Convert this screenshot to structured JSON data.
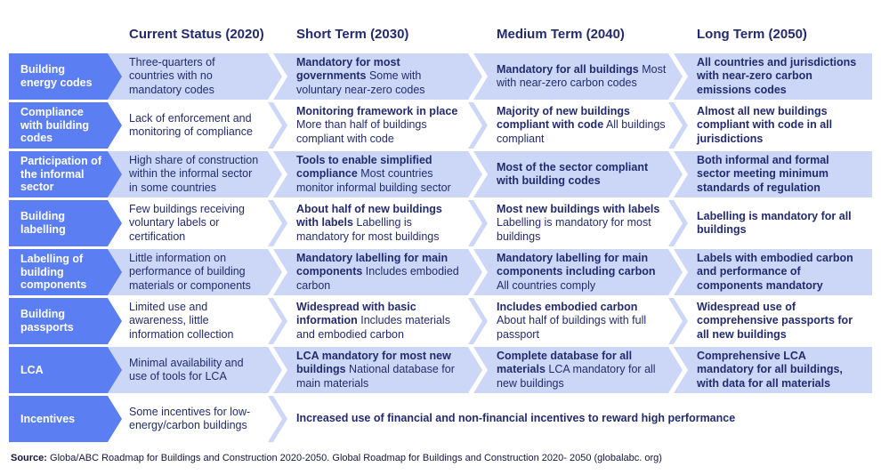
{
  "colors": {
    "arrow_blue": "#5b7ff2",
    "band_light": "#ccd7f7",
    "text_navy": "#232b6e"
  },
  "header": {
    "columns": [
      "Current Status (2020)",
      "Short Term (2030)",
      "Medium Term (2040)",
      "Long Term (2050)"
    ]
  },
  "rows": [
    {
      "label": "Building energy codes",
      "cells": [
        {
          "strong": "",
          "rest": "Three-quarters of countries with no mandatory codes"
        },
        {
          "strong": "Mandatory for most governments",
          "rest": "Some with voluntary near-zero codes"
        },
        {
          "strong": "Mandatory for all buildings",
          "rest": "Most with near-zero carbon codes"
        },
        {
          "strong": "All countries and jurisdictions with near-zero carbon emissions codes",
          "rest": ""
        }
      ]
    },
    {
      "label": "Compliance with building codes",
      "cells": [
        {
          "strong": "",
          "rest": "Lack of enforcement and monitoring of compliance"
        },
        {
          "strong": "Monitoring framework in place",
          "rest": "More than half of buildings compliant with code"
        },
        {
          "strong": "Majority of new buildings compliant with code",
          "rest": "All buildings compliant"
        },
        {
          "strong": "Almost all new buildings compliant with code in all jurisdictions",
          "rest": ""
        }
      ]
    },
    {
      "label": "Participation of the informal sector",
      "cells": [
        {
          "strong": "",
          "rest": "High share of construction within the informal sector in some countries"
        },
        {
          "strong": "Tools to enable simplified compliance",
          "rest": "Most countries monitor informal building sector"
        },
        {
          "strong": "Most of the sector compliant with building codes",
          "rest": ""
        },
        {
          "strong": "Both informal and formal sector meeting minimum standards of regulation",
          "rest": ""
        }
      ]
    },
    {
      "label": "Building labelling",
      "cells": [
        {
          "strong": "",
          "rest": "Few buildings receiving voluntary labels or certification"
        },
        {
          "strong": "About half of new buildings with labels",
          "rest": "Labelling is mandatory for most buildings"
        },
        {
          "strong": "Most new buildings with labels",
          "rest": "Labelling is mandatory for most buildings"
        },
        {
          "strong": "Labelling is mandatory for all buildings",
          "rest": ""
        }
      ]
    },
    {
      "label": "Labelling of building components",
      "cells": [
        {
          "strong": "",
          "rest": "Little information on performance of building materials or components"
        },
        {
          "strong": "Mandatory labelling for main components",
          "rest": "Includes embodied carbon"
        },
        {
          "strong": "Mandatory labelling for main components including carbon",
          "rest": "All countries comply"
        },
        {
          "strong": "Labels with embodied carbon and performance of components mandatory",
          "rest": ""
        }
      ]
    },
    {
      "label": "Building passports",
      "cells": [
        {
          "strong": "",
          "rest": "Limited use and awareness, little information collection"
        },
        {
          "strong": "Widespread with basic information",
          "rest": "Includes materials and embodied carbon"
        },
        {
          "strong": "Includes embodied carbon",
          "rest": "About half of buildings with full passport"
        },
        {
          "strong": "Widespread use of comprehensive passports for all new buildings",
          "rest": ""
        }
      ]
    },
    {
      "label": "LCA",
      "cells": [
        {
          "strong": "",
          "rest": "Minimal availability and use of tools for LCA"
        },
        {
          "strong": "LCA mandatory for most new buildings",
          "rest": "National database for main materials"
        },
        {
          "strong": "Complete database for all materials",
          "rest": "LCA mandatory for all new buildings"
        },
        {
          "strong": "Comprehensive LCA mandatory for all buildings, with data for all materials",
          "rest": ""
        }
      ]
    },
    {
      "label": "Incentives",
      "cells": [
        {
          "strong": "",
          "rest": "Some incentives for low-energy/carbon buildings"
        },
        {
          "strong": "Increased use of financial and non-financial incentives to reward high performance",
          "rest": ""
        }
      ]
    }
  ],
  "source": {
    "label": "Source:",
    "text": "Globa/ABC Roadmap for Buildings and Construction 2020-2050. Global Roadmap for Buildings and Construction 2020- 2050 (globalabc. org)"
  }
}
